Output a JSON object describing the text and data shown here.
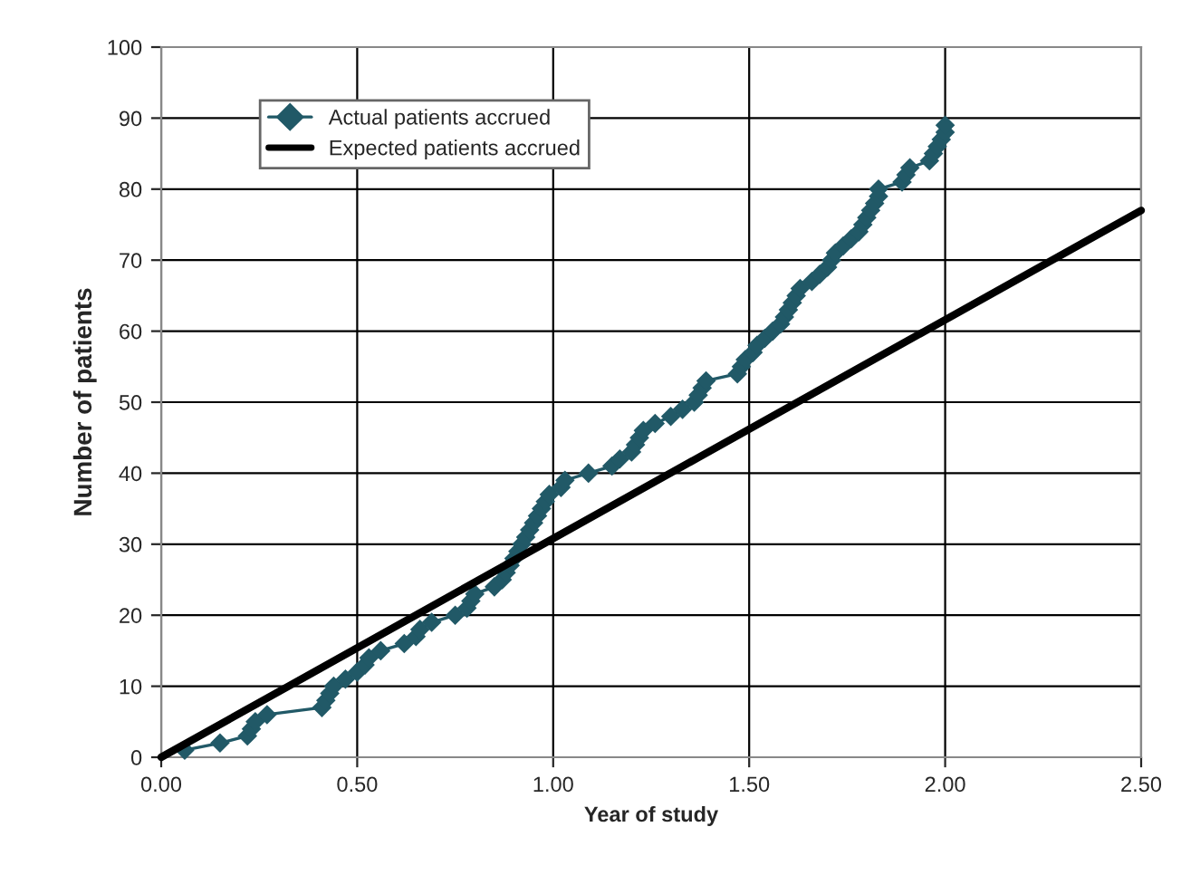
{
  "chart_data": {
    "type": "line",
    "xlabel": "Year of study",
    "ylabel": "Number of patients",
    "xlim": [
      0,
      2.5
    ],
    "ylim": [
      0,
      100
    ],
    "xticks": [
      {
        "value": 0,
        "label": "0.00"
      },
      {
        "value": 0.5,
        "label": "0.50"
      },
      {
        "value": 1,
        "label": "1.00"
      },
      {
        "value": 1.5,
        "label": "1.50"
      },
      {
        "value": 2,
        "label": "2.00"
      },
      {
        "value": 2.5,
        "label": "2.50"
      }
    ],
    "yticks": [
      0,
      10,
      20,
      30,
      40,
      50,
      60,
      70,
      80,
      90,
      100
    ],
    "grid": true,
    "legend": "top left",
    "series": [
      {
        "name": "Actual patients accrued",
        "color": "#215967",
        "marker": "diamond",
        "x": [
          0.06,
          0.15,
          0.22,
          0.23,
          0.24,
          0.27,
          0.41,
          0.42,
          0.43,
          0.44,
          0.47,
          0.5,
          0.52,
          0.53,
          0.56,
          0.62,
          0.65,
          0.66,
          0.69,
          0.75,
          0.78,
          0.79,
          0.8,
          0.85,
          0.87,
          0.88,
          0.89,
          0.9,
          0.91,
          0.92,
          0.93,
          0.94,
          0.95,
          0.96,
          0.97,
          0.98,
          0.99,
          1.02,
          1.03,
          1.09,
          1.15,
          1.17,
          1.2,
          1.21,
          1.22,
          1.23,
          1.26,
          1.3,
          1.33,
          1.36,
          1.37,
          1.38,
          1.39,
          1.47,
          1.48,
          1.49,
          1.51,
          1.52,
          1.54,
          1.56,
          1.58,
          1.59,
          1.6,
          1.61,
          1.62,
          1.63,
          1.66,
          1.68,
          1.7,
          1.71,
          1.72,
          1.74,
          1.76,
          1.78,
          1.79,
          1.8,
          1.81,
          1.82,
          1.83,
          1.83,
          1.89,
          1.9,
          1.91,
          1.96,
          1.97,
          1.98,
          1.99,
          2.0,
          2.0
        ],
        "values": [
          1,
          2,
          3,
          4,
          5,
          6,
          7,
          8,
          9,
          10,
          11,
          12,
          13,
          14,
          15,
          16,
          17,
          18,
          19,
          20,
          21,
          22,
          23,
          24,
          25,
          26,
          27,
          28,
          29,
          30,
          31,
          32,
          33,
          34,
          35,
          36,
          37,
          38,
          39,
          40,
          41,
          42,
          43,
          44,
          45,
          46,
          47,
          48,
          49,
          50,
          51,
          52,
          53,
          54,
          55,
          56,
          57,
          58,
          59,
          60,
          61,
          62,
          63,
          64,
          65,
          66,
          67,
          68,
          69,
          70,
          71,
          72,
          73,
          74,
          75,
          76,
          77,
          78,
          79,
          80,
          81,
          82,
          83,
          84,
          85,
          86,
          87,
          88,
          89
        ]
      },
      {
        "name": "Expected patients accrued",
        "color": "#000000",
        "marker": "none",
        "x": [
          0,
          2.5
        ],
        "values": [
          0,
          77
        ]
      }
    ]
  }
}
